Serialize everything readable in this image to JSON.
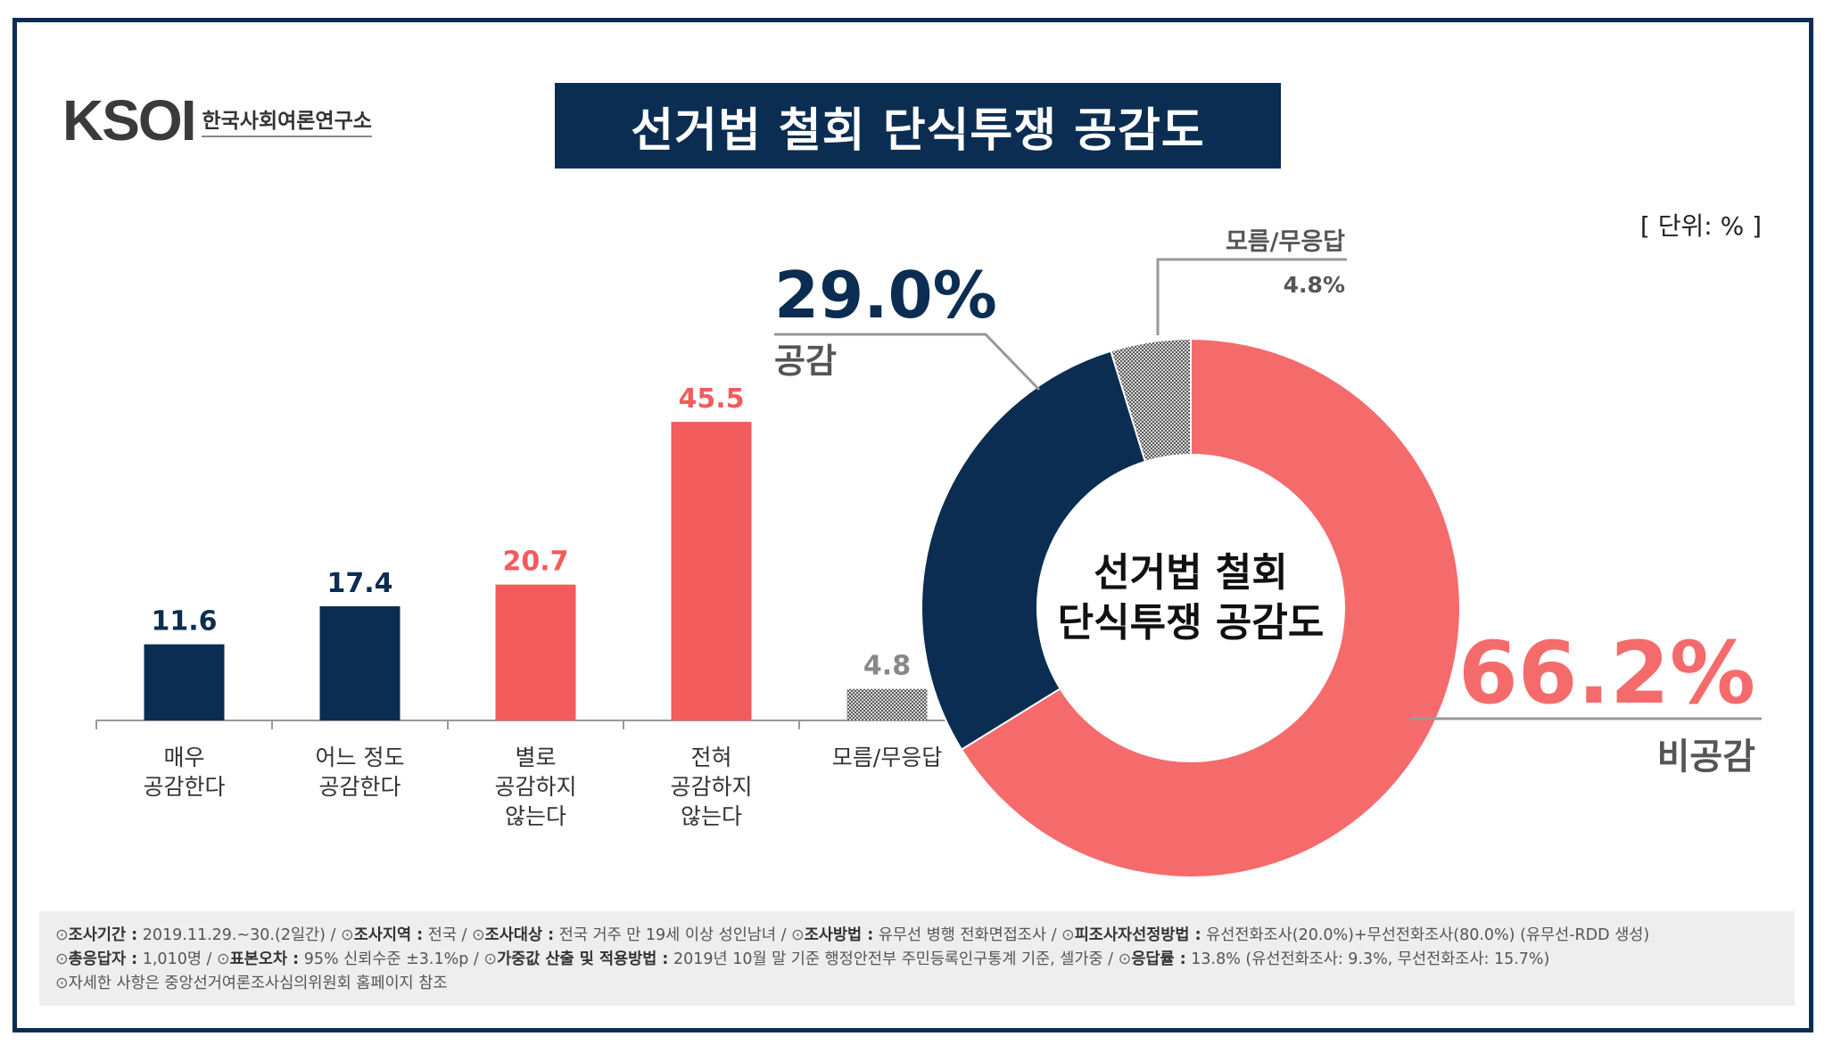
{
  "logo": {
    "mark": "KSOI",
    "org": "한국사회여론연구소"
  },
  "title": "선거법 철회 단식투쟁 공감도",
  "unit": "[ 단위: % ]",
  "chart_data": [
    {
      "type": "bar",
      "categories": [
        "매우\n공감한다",
        "어느 정도\n공감한다",
        "별로\n공감하지\n않는다",
        "전혀\n공감하지\n않는다",
        "모름/무응답"
      ],
      "values": [
        11.6,
        17.4,
        20.7,
        45.5,
        4.8
      ],
      "value_labels": [
        "11.6",
        "17.4",
        "20.7",
        "45.5",
        "4.8"
      ],
      "colors": [
        "#0b2d52",
        "#0b2d52",
        "#f25c5c",
        "#f25c5c",
        "#bdbdbd"
      ],
      "label_colors": [
        "#0b2d52",
        "#0b2d52",
        "#f25c5c",
        "#f25c5c",
        "#888888"
      ],
      "ylim": [
        0,
        50
      ]
    },
    {
      "type": "pie",
      "center_label": [
        "선거법 철회",
        "단식투쟁 공감도"
      ],
      "slices": [
        {
          "name": "공감",
          "value": 29.0,
          "label": "29.0%",
          "color": "#0b2d52"
        },
        {
          "name": "비공감",
          "value": 66.2,
          "label": "66.2%",
          "color": "#f56b6b"
        },
        {
          "name": "모름/무응답",
          "value": 4.8,
          "label": "4.8%",
          "color": "#bdbdbd"
        }
      ]
    }
  ],
  "footer": {
    "line1": [
      {
        "k": "조사기간 :",
        "v": "2019.11.29.~30.(2일간)"
      },
      {
        "k": "조사지역 :",
        "v": "전국"
      },
      {
        "k": "조사대상 :",
        "v": "전국 거주 만 19세 이상 성인남녀"
      },
      {
        "k": "조사방법 :",
        "v": "유무선 병행 전화면접조사"
      },
      {
        "k": "피조사자선정방법 :",
        "v": "유선전화조사(20.0%)+무선전화조사(80.0%) (유무선-RDD 생성)"
      }
    ],
    "line2": [
      {
        "k": "총응답자 :",
        "v": "1,010명"
      },
      {
        "k": "표본오차 :",
        "v": "95% 신뢰수준 ±3.1%p"
      },
      {
        "k": "가중값 산출 및 적용방법 :",
        "v": "2019년 10월 말 기준 행정안전부 주민등록인구통계 기준, 셀가중"
      },
      {
        "k": "응답률 :",
        "v": "13.8% (유선전화조사: 9.3%, 무선전화조사: 15.7%)"
      }
    ],
    "line3": "자세한 사항은 중앙선거여론조사심의위원회 홈페이지 참조"
  }
}
